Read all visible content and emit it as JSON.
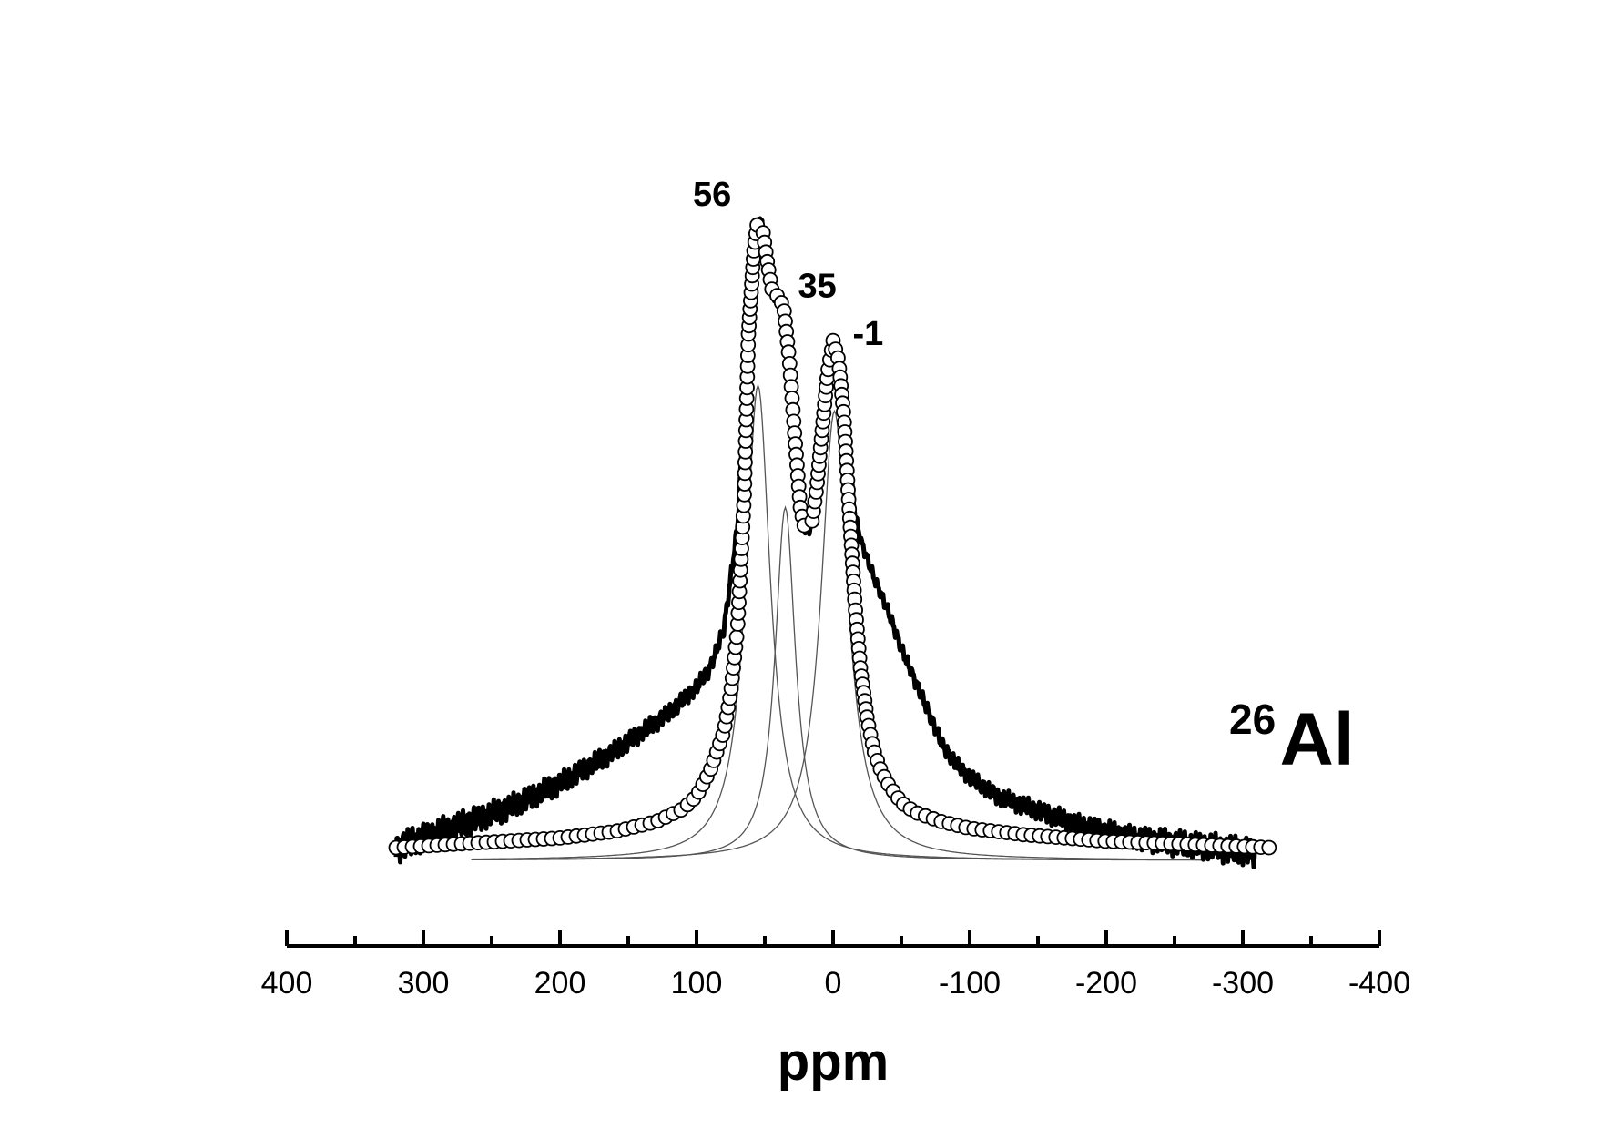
{
  "chart_data": {
    "type": "line",
    "title": "",
    "xlabel": "ppm",
    "ylabel": "",
    "xlim": [
      400,
      -400
    ],
    "x_ticks": [
      400,
      300,
      200,
      100,
      0,
      -100,
      -200,
      -300,
      -400
    ],
    "x_tick_labels": [
      "400",
      "300",
      "200",
      "100",
      "0",
      "-100",
      "-200",
      "-300",
      "-400"
    ],
    "x_minor_step": 50,
    "grid": false,
    "legend": "none",
    "nucleus_label": {
      "mass": "26",
      "symbol": "Al"
    },
    "peak_annotations": [
      {
        "x": 56,
        "y": 0.98,
        "text": "56"
      },
      {
        "x": 35,
        "y": 0.86,
        "text": "35"
      },
      {
        "x": -1,
        "y": 0.8,
        "text": "-1"
      }
    ],
    "series": [
      {
        "style": "thick-line",
        "x": [
          320,
          280,
          240,
          200,
          160,
          140,
          120,
          100,
          90,
          80,
          70,
          62,
          58,
          55,
          52,
          48,
          44,
          40,
          36,
          32,
          28,
          24,
          20,
          16,
          12,
          8,
          4,
          0,
          -4,
          -8,
          -12,
          -16,
          -20,
          -30,
          -40,
          -50,
          -60,
          -70,
          -80,
          -90,
          -100,
          -120,
          -140,
          -160,
          -180,
          -200,
          -220,
          -240,
          -260,
          -280,
          -300,
          -310
        ],
        "y": [
          0.0,
          0.03,
          0.06,
          0.1,
          0.15,
          0.18,
          0.21,
          0.25,
          0.28,
          0.34,
          0.5,
          0.8,
          0.93,
          0.98,
          0.97,
          0.91,
          0.86,
          0.86,
          0.84,
          0.76,
          0.64,
          0.53,
          0.49,
          0.5,
          0.56,
          0.65,
          0.74,
          0.79,
          0.76,
          0.69,
          0.6,
          0.52,
          0.48,
          0.42,
          0.37,
          0.31,
          0.26,
          0.21,
          0.16,
          0.13,
          0.11,
          0.08,
          0.065,
          0.05,
          0.035,
          0.025,
          0.015,
          0.01,
          0.005,
          0.0,
          -0.005,
          -0.01
        ]
      },
      {
        "style": "open-circles",
        "x": [
          320,
          280,
          240,
          200,
          160,
          130,
          110,
          100,
          90,
          80,
          75,
          70,
          65,
          62,
          58,
          55,
          52,
          48,
          44,
          40,
          36,
          32,
          28,
          24,
          20,
          16,
          12,
          8,
          4,
          0,
          -4,
          -8,
          -12,
          -16,
          -20,
          -25,
          -30,
          -35,
          -40,
          -50,
          -60,
          -80,
          -100,
          -140,
          -200,
          -260,
          -320
        ],
        "y": [
          0.0,
          0.005,
          0.01,
          0.015,
          0.025,
          0.04,
          0.06,
          0.08,
          0.12,
          0.18,
          0.24,
          0.34,
          0.55,
          0.8,
          0.93,
          0.98,
          0.97,
          0.91,
          0.86,
          0.86,
          0.84,
          0.76,
          0.64,
          0.53,
          0.49,
          0.5,
          0.56,
          0.65,
          0.74,
          0.79,
          0.76,
          0.67,
          0.52,
          0.38,
          0.28,
          0.2,
          0.15,
          0.12,
          0.1,
          0.07,
          0.055,
          0.04,
          0.03,
          0.02,
          0.01,
          0.005,
          0.0
        ]
      },
      {
        "style": "thin-line",
        "name_text": "",
        "center": 55,
        "height": 0.74,
        "hwhm": 11
      },
      {
        "style": "thin-line",
        "name_text": "",
        "center": 35,
        "height": 0.55,
        "hwhm": 9
      },
      {
        "style": "thin-line",
        "name_text": "",
        "center": -1,
        "height": 0.7,
        "hwhm": 12
      }
    ]
  }
}
